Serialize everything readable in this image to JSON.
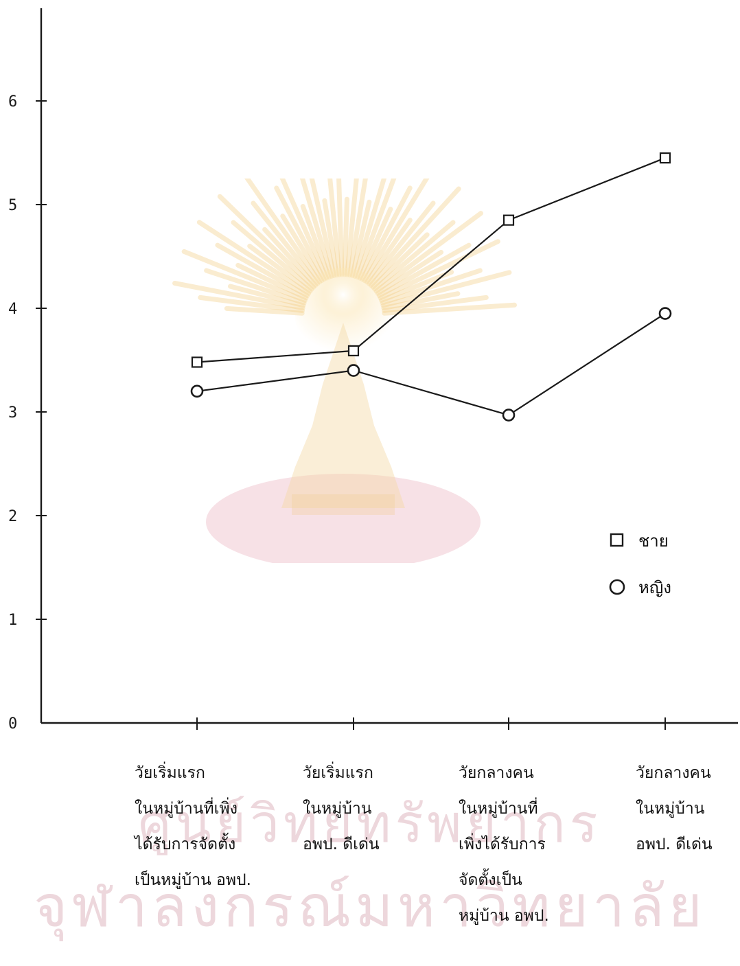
{
  "chart_data": {
    "type": "line",
    "title": "",
    "xlabel": "",
    "ylabel": "",
    "ylim": [
      0,
      6
    ],
    "yticks": [
      0,
      1,
      2,
      3,
      4,
      5,
      6
    ],
    "ytick_labels": [
      "0",
      "1",
      "2",
      "3",
      "4",
      "5",
      "6"
    ],
    "grid": false,
    "legend_position": "right",
    "categories": [
      [
        "วัยเริ่มแรก",
        "ในหมู่บ้านที่เพิ่ง",
        "ได้รับการจัดตั้ง",
        "เป็นหมู่บ้าน อพป."
      ],
      [
        "วัยเริ่มแรก",
        "ในหมู่บ้าน",
        "อพป. ดีเด่น"
      ],
      [
        "วัยกลางคน",
        "ในหมู่บ้านที่",
        "เพิ่งได้รับการ",
        "จัดตั้งเป็น",
        "หมู่บ้าน อพป."
      ],
      [
        "วัยกลางคน",
        "ในหมู่บ้าน",
        "อพป. ดีเด่น"
      ]
    ],
    "series": [
      {
        "name": "ชาย",
        "marker": "square",
        "values": [
          3.48,
          3.59,
          4.85,
          5.45
        ]
      },
      {
        "name": "หญิง",
        "marker": "circle",
        "values": [
          3.2,
          3.4,
          2.97,
          3.95
        ]
      }
    ],
    "colors": {
      "line": "#1a1a1a",
      "marker_fill": "#ffffff"
    }
  },
  "watermark": {
    "line1": "ศูนย์วิทยทรัพยากร",
    "line2": "จุฬาลงกรณ์มหาวิทยาลัย"
  }
}
